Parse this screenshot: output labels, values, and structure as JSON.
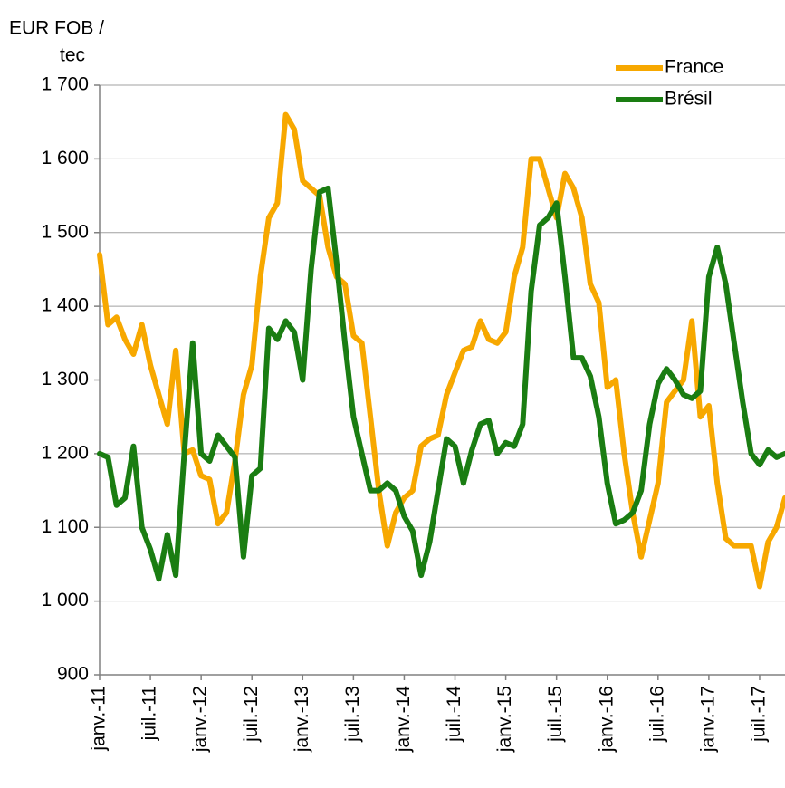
{
  "chart_data": {
    "type": "line",
    "y_label": [
      "EUR FOB /",
      "tec"
    ],
    "categories": [
      "janv.-11",
      null,
      null,
      null,
      null,
      null,
      "juil.-11",
      null,
      null,
      null,
      null,
      null,
      "janv.-12",
      null,
      null,
      null,
      null,
      null,
      "juil.-12",
      null,
      null,
      null,
      null,
      null,
      "janv.-13",
      null,
      null,
      null,
      null,
      null,
      "juil.-13",
      null,
      null,
      null,
      null,
      null,
      "janv.-14",
      null,
      null,
      null,
      null,
      null,
      "juil.-14",
      null,
      null,
      null,
      null,
      null,
      "janv.-15",
      null,
      null,
      null,
      null,
      null,
      "juil.-15",
      null,
      null,
      null,
      null,
      null,
      "janv.-16",
      null,
      null,
      null,
      null,
      null,
      "juil.-16",
      null,
      null,
      null,
      null,
      null,
      "janv.-17",
      null,
      null,
      null,
      null,
      null,
      "juil.-17",
      null,
      null,
      null
    ],
    "series": [
      {
        "name": "France",
        "color": "#f7a800",
        "values": [
          1470,
          1375,
          1385,
          1355,
          1335,
          1375,
          1320,
          1280,
          1240,
          1340,
          1200,
          1205,
          1170,
          1165,
          1105,
          1120,
          1190,
          1280,
          1320,
          1440,
          1520,
          1540,
          1660,
          1640,
          1570,
          1560,
          1550,
          1480,
          1440,
          1430,
          1360,
          1350,
          1250,
          1150,
          1075,
          1120,
          1140,
          1150,
          1210,
          1220,
          1225,
          1280,
          1310,
          1340,
          1345,
          1380,
          1355,
          1350,
          1365,
          1440,
          1480,
          1600,
          1600,
          1560,
          1520,
          1580,
          1560,
          1520,
          1430,
          1405,
          1290,
          1300,
          1200,
          1120,
          1060,
          1110,
          1160,
          1270,
          1285,
          1300,
          1380,
          1250,
          1265,
          1160,
          1085,
          1075,
          1075,
          1075,
          1020,
          1080,
          1100,
          1140
        ]
      },
      {
        "name": "Brésil",
        "color": "#1a7d12",
        "values": [
          1200,
          1195,
          1130,
          1140,
          1210,
          1100,
          1070,
          1030,
          1090,
          1035,
          1200,
          1350,
          1200,
          1190,
          1225,
          1210,
          1195,
          1060,
          1170,
          1180,
          1370,
          1355,
          1380,
          1365,
          1300,
          1450,
          1555,
          1560,
          1460,
          1350,
          1250,
          1200,
          1150,
          1150,
          1160,
          1150,
          1115,
          1095,
          1035,
          1080,
          1150,
          1220,
          1210,
          1160,
          1205,
          1240,
          1245,
          1200,
          1215,
          1210,
          1240,
          1420,
          1510,
          1520,
          1540,
          1440,
          1330,
          1330,
          1305,
          1250,
          1160,
          1105,
          1110,
          1120,
          1150,
          1240,
          1295,
          1315,
          1300,
          1280,
          1275,
          1285,
          1440,
          1480,
          1430,
          1350,
          1270,
          1200,
          1185,
          1205,
          1195,
          1200
        ]
      }
    ],
    "ylim": [
      900,
      1700
    ],
    "yticks": [
      900,
      {
        "value": 1000,
        "label": "1 000"
      },
      {
        "value": 1100,
        "label": "1 100"
      },
      {
        "value": 1200,
        "label": "1 200"
      },
      {
        "value": 1300,
        "label": "1 300"
      },
      {
        "value": 1400,
        "label": "1 400"
      },
      {
        "value": 1500,
        "label": "1 500"
      },
      {
        "value": 1600,
        "label": "1 600"
      },
      {
        "value": 1700,
        "label": "1 700"
      }
    ],
    "grid": true,
    "legend": "top-right"
  }
}
